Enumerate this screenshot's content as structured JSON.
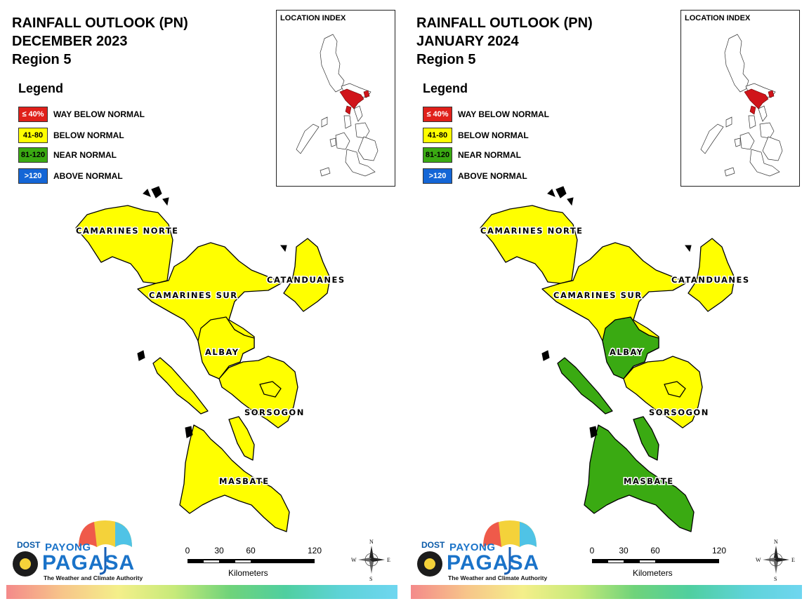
{
  "panels": [
    {
      "title_line1": "RAINFALL OUTLOOK (PN)",
      "title_line2": "DECEMBER 2023",
      "title_line3": "Region 5",
      "provinces": {
        "camarines_norte": "below_normal",
        "camarines_sur": "below_normal",
        "catanduanes": "below_normal",
        "albay": "below_normal",
        "sorsogon": "below_normal",
        "masbate": "below_normal"
      }
    },
    {
      "title_line1": "RAINFALL OUTLOOK (PN)",
      "title_line2": "JANUARY 2024",
      "title_line3": "Region 5",
      "provinces": {
        "camarines_norte": "below_normal",
        "camarines_sur": "below_normal",
        "catanduanes": "below_normal",
        "albay": "near_normal",
        "sorsogon": "below_normal",
        "masbate": "near_normal"
      }
    }
  ],
  "legend": {
    "title": "Legend",
    "items": [
      {
        "key": "way_below_normal",
        "range": "≤ 40%",
        "label": "WAY BELOW NORMAL",
        "color": "#e0201a",
        "text_color": "#ffffff"
      },
      {
        "key": "below_normal",
        "range": "41-80",
        "label": "BELOW NORMAL",
        "color": "#ffff00",
        "text_color": "#000000"
      },
      {
        "key": "near_normal",
        "range": "81-120",
        "label": "NEAR NORMAL",
        "color": "#3aaa12",
        "text_color": "#000000"
      },
      {
        "key": "above_normal",
        "range": ">120",
        "label": "ABOVE NORMAL",
        "color": "#1466d6",
        "text_color": "#ffffff"
      }
    ]
  },
  "inset": {
    "title": "LOCATION INDEX",
    "highlight_color": "#d0141a"
  },
  "province_labels": {
    "camarines_norte": "CAMARINES NORTE",
    "camarines_sur": "CAMARINES SUR",
    "catanduanes": "CATANDUANES",
    "albay": "ALBAY",
    "sorsogon": "SORSOGON",
    "masbate": "MASBATE"
  },
  "scale_bar": {
    "ticks": [
      "0",
      "30",
      "60",
      "120"
    ],
    "unit": "Kilometers"
  },
  "compass": {
    "n": "N",
    "e": "E",
    "s": "S",
    "w": "W"
  },
  "logo": {
    "dost": "DOST",
    "payong": "PAYONG",
    "pagasa": "PAGASA",
    "tagline": "The Weather and Climate Authority"
  }
}
